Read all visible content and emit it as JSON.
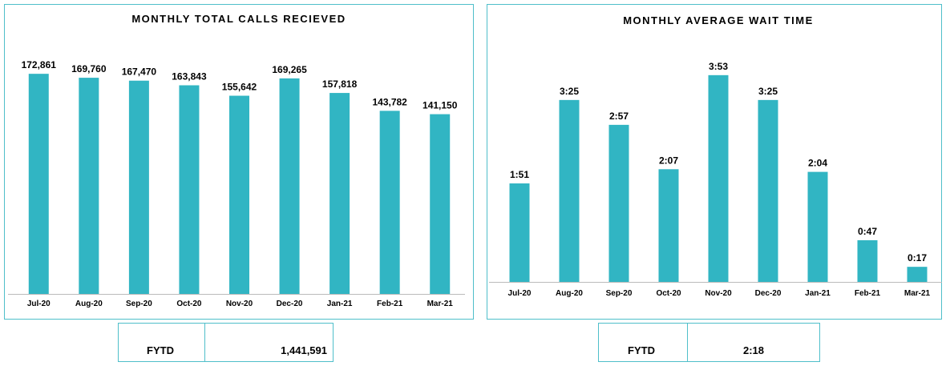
{
  "chart_data": [
    {
      "type": "bar",
      "title": "MONTHLY TOTAL CALLS RECIEVED",
      "categories": [
        "Jul-20",
        "Aug-20",
        "Sep-20",
        "Oct-20",
        "Nov-20",
        "Dec-20",
        "Jan-21",
        "Feb-21",
        "Mar-21"
      ],
      "values": [
        172861,
        169760,
        167470,
        163843,
        155642,
        169265,
        157818,
        143782,
        141150
      ],
      "value_labels": [
        "172,861",
        "169,760",
        "167,470",
        "163,843",
        "155,642",
        "169,265",
        "157,818",
        "143,782",
        "141,150"
      ],
      "color": "#31b5c3",
      "ylim": [
        0,
        200000
      ]
    },
    {
      "type": "bar",
      "title": "MONTHLY AVERAGE WAIT TIME",
      "categories": [
        "Jul-20",
        "Aug-20",
        "Sep-20",
        "Oct-20",
        "Nov-20",
        "Dec-20",
        "Jan-21",
        "Feb-21",
        "Mar-21"
      ],
      "values": [
        111,
        205,
        177,
        127,
        233,
        205,
        124,
        47,
        17
      ],
      "value_labels": [
        "1:51",
        "3:25",
        "2:57",
        "2:07",
        "3:53",
        "3:25",
        "2:04",
        "0:47",
        "0:17"
      ],
      "color": "#31b5c3",
      "ylim": [
        0,
        250
      ]
    }
  ],
  "summaries": [
    {
      "label": "FYTD",
      "value": "1,441,591"
    },
    {
      "label": "FYTD",
      "value": "2:18"
    }
  ]
}
